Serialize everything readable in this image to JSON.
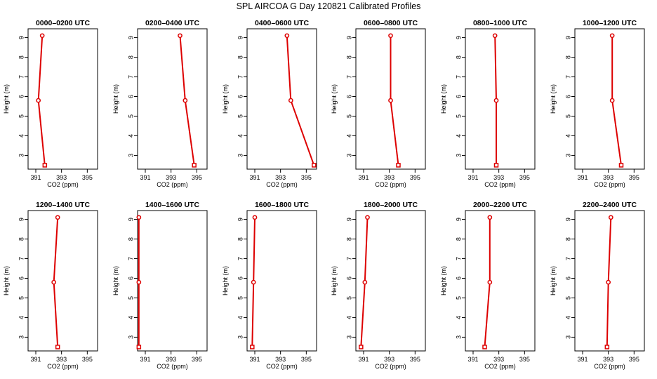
{
  "figure": {
    "title": "SPL AIRCOA G  Day 120821  Calibrated Profiles"
  },
  "colors": {
    "series": "#dd0000",
    "axes": "#000000",
    "background": "#ffffff"
  },
  "chart_data": [
    {
      "type": "line",
      "title": "0000–0200 UTC",
      "xlabel": "CO2 (ppm)",
      "ylabel": "Height (m)",
      "xlim": [
        390.4,
        395.8
      ],
      "ylim": [
        2.3,
        9.45
      ],
      "grid": false,
      "xticks": [
        391,
        393,
        395
      ],
      "yticks": [
        3,
        4,
        5,
        6,
        7,
        8,
        9
      ],
      "x": [
        391.5,
        391.2,
        391.7
      ],
      "y": [
        9.1,
        5.8,
        2.5
      ]
    },
    {
      "type": "line",
      "title": "0200–0400 UTC",
      "xlabel": "CO2 (ppm)",
      "ylabel": "Height (m)",
      "xlim": [
        390.4,
        395.8
      ],
      "ylim": [
        2.3,
        9.45
      ],
      "grid": false,
      "xticks": [
        391,
        393,
        395
      ],
      "yticks": [
        3,
        4,
        5,
        6,
        7,
        8,
        9
      ],
      "x": [
        393.7,
        394.1,
        394.8
      ],
      "y": [
        9.1,
        5.8,
        2.5
      ]
    },
    {
      "type": "line",
      "title": "0400–0600 UTC",
      "xlabel": "CO2 (ppm)",
      "ylabel": "Height (m)",
      "xlim": [
        390.4,
        395.8
      ],
      "ylim": [
        2.3,
        9.45
      ],
      "grid": false,
      "xticks": [
        391,
        393,
        395
      ],
      "yticks": [
        3,
        4,
        5,
        6,
        7,
        8,
        9
      ],
      "x": [
        393.5,
        393.8,
        395.6
      ],
      "y": [
        9.1,
        5.8,
        2.5
      ]
    },
    {
      "type": "line",
      "title": "0600–0800 UTC",
      "xlabel": "CO2 (ppm)",
      "ylabel": "Height (m)",
      "xlim": [
        390.4,
        395.8
      ],
      "ylim": [
        2.3,
        9.45
      ],
      "grid": false,
      "xticks": [
        391,
        393,
        395
      ],
      "yticks": [
        3,
        4,
        5,
        6,
        7,
        8,
        9
      ],
      "x": [
        393.1,
        393.1,
        393.7
      ],
      "y": [
        9.1,
        5.8,
        2.5
      ]
    },
    {
      "type": "line",
      "title": "0800–1000 UTC",
      "xlabel": "CO2 (ppm)",
      "ylabel": "Height (m)",
      "xlim": [
        390.4,
        395.8
      ],
      "ylim": [
        2.3,
        9.45
      ],
      "grid": false,
      "xticks": [
        391,
        393,
        395
      ],
      "yticks": [
        3,
        4,
        5,
        6,
        7,
        8,
        9
      ],
      "x": [
        392.7,
        392.8,
        392.8
      ],
      "y": [
        9.1,
        5.8,
        2.5
      ]
    },
    {
      "type": "line",
      "title": "1000–1200 UTC",
      "xlabel": "CO2 (ppm)",
      "ylabel": "Height (m)",
      "xlim": [
        390.4,
        395.8
      ],
      "ylim": [
        2.3,
        9.45
      ],
      "grid": false,
      "xticks": [
        391,
        393,
        395
      ],
      "yticks": [
        3,
        4,
        5,
        6,
        7,
        8,
        9
      ],
      "x": [
        393.3,
        393.3,
        394.0
      ],
      "y": [
        9.1,
        5.8,
        2.5
      ]
    },
    {
      "type": "line",
      "title": "1200–1400 UTC",
      "xlabel": "CO2 (ppm)",
      "ylabel": "Height (m)",
      "xlim": [
        390.4,
        395.8
      ],
      "ylim": [
        2.3,
        9.45
      ],
      "grid": false,
      "xticks": [
        391,
        393,
        395
      ],
      "yticks": [
        3,
        4,
        5,
        6,
        7,
        8,
        9
      ],
      "x": [
        392.7,
        392.4,
        392.7
      ],
      "y": [
        9.1,
        5.8,
        2.5
      ]
    },
    {
      "type": "line",
      "title": "1400–1600 UTC",
      "xlabel": "CO2 (ppm)",
      "ylabel": "Height (m)",
      "xlim": [
        390.4,
        395.8
      ],
      "ylim": [
        2.3,
        9.45
      ],
      "grid": false,
      "xticks": [
        391,
        393,
        395
      ],
      "yticks": [
        3,
        4,
        5,
        6,
        7,
        8,
        9
      ],
      "x": [
        390.5,
        390.5,
        390.5
      ],
      "y": [
        9.1,
        5.8,
        2.5
      ]
    },
    {
      "type": "line",
      "title": "1600–1800 UTC",
      "xlabel": "CO2 (ppm)",
      "ylabel": "Height (m)",
      "xlim": [
        390.4,
        395.8
      ],
      "ylim": [
        2.3,
        9.45
      ],
      "grid": false,
      "xticks": [
        391,
        393,
        395
      ],
      "yticks": [
        3,
        4,
        5,
        6,
        7,
        8,
        9
      ],
      "x": [
        391.0,
        390.9,
        390.8
      ],
      "y": [
        9.1,
        5.8,
        2.5
      ]
    },
    {
      "type": "line",
      "title": "1800–2000 UTC",
      "xlabel": "CO2 (ppm)",
      "ylabel": "Height (m)",
      "xlim": [
        390.4,
        395.8
      ],
      "ylim": [
        2.3,
        9.45
      ],
      "grid": false,
      "xticks": [
        391,
        393,
        395
      ],
      "yticks": [
        3,
        4,
        5,
        6,
        7,
        8,
        9
      ],
      "x": [
        391.3,
        391.1,
        390.8
      ],
      "y": [
        9.1,
        5.8,
        2.5
      ]
    },
    {
      "type": "line",
      "title": "2000–2200 UTC",
      "xlabel": "CO2 (ppm)",
      "ylabel": "Height (m)",
      "xlim": [
        390.4,
        395.8
      ],
      "ylim": [
        2.3,
        9.45
      ],
      "grid": false,
      "xticks": [
        391,
        393,
        395
      ],
      "yticks": [
        3,
        4,
        5,
        6,
        7,
        8,
        9
      ],
      "x": [
        392.3,
        392.3,
        391.9
      ],
      "y": [
        9.1,
        5.8,
        2.5
      ]
    },
    {
      "type": "line",
      "title": "2200–2400 UTC",
      "xlabel": "CO2 (ppm)",
      "ylabel": "Height (m)",
      "xlim": [
        390.4,
        395.8
      ],
      "ylim": [
        2.3,
        9.45
      ],
      "grid": false,
      "xticks": [
        391,
        393,
        395
      ],
      "yticks": [
        3,
        4,
        5,
        6,
        7,
        8,
        9
      ],
      "x": [
        393.2,
        393.0,
        392.9
      ],
      "y": [
        9.1,
        5.8,
        2.5
      ]
    }
  ]
}
